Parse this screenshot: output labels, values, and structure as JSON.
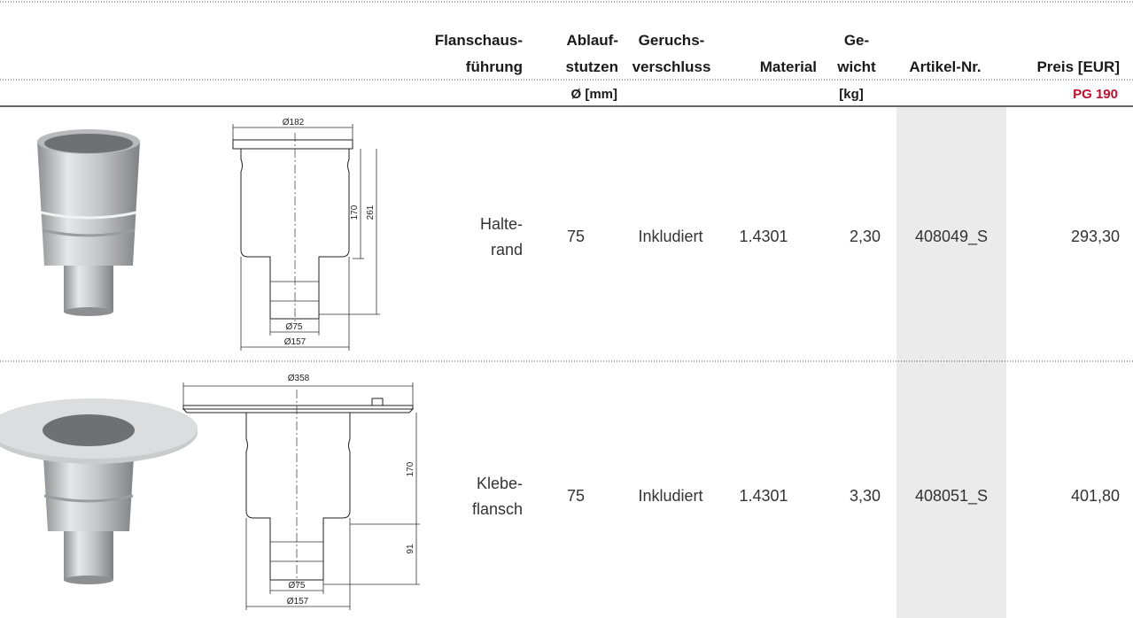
{
  "header": {
    "columns": [
      {
        "line1": "Flanschaus-",
        "line2": "führung"
      },
      {
        "line1": "Ablauf-",
        "line2": "stutzen"
      },
      {
        "line1": "Geruchs-",
        "line2": "verschluss"
      },
      {
        "line1": "Material"
      },
      {
        "line1": "Ge-",
        "line2": "wicht"
      },
      {
        "line1": "Artikel-Nr."
      },
      {
        "line1": "Preis [EUR]"
      }
    ],
    "units": {
      "outlet": "Ø [mm]",
      "weight": "[kg]",
      "price_group": "PG 190"
    }
  },
  "rows": [
    {
      "flange": [
        "Halte-",
        "rand"
      ],
      "outlet": "75",
      "trap": "Inkludiert",
      "material": "1.4301",
      "weight": "2,30",
      "article": "408049_S",
      "price": "293,30",
      "drawing": {
        "top": "Ø182",
        "height_body": "170",
        "height_total": "261",
        "outlet": "Ø75",
        "base": "Ø157"
      }
    },
    {
      "flange": [
        "Klebe-",
        "flansch"
      ],
      "outlet": "75",
      "trap": "Inkludiert",
      "material": "1.4301",
      "weight": "3,30",
      "article": "408051_S",
      "price": "401,80",
      "drawing": {
        "top": "Ø358",
        "height_body": "170",
        "height_outlet": "91",
        "outlet": "Ø75",
        "base": "Ø157"
      }
    }
  ]
}
